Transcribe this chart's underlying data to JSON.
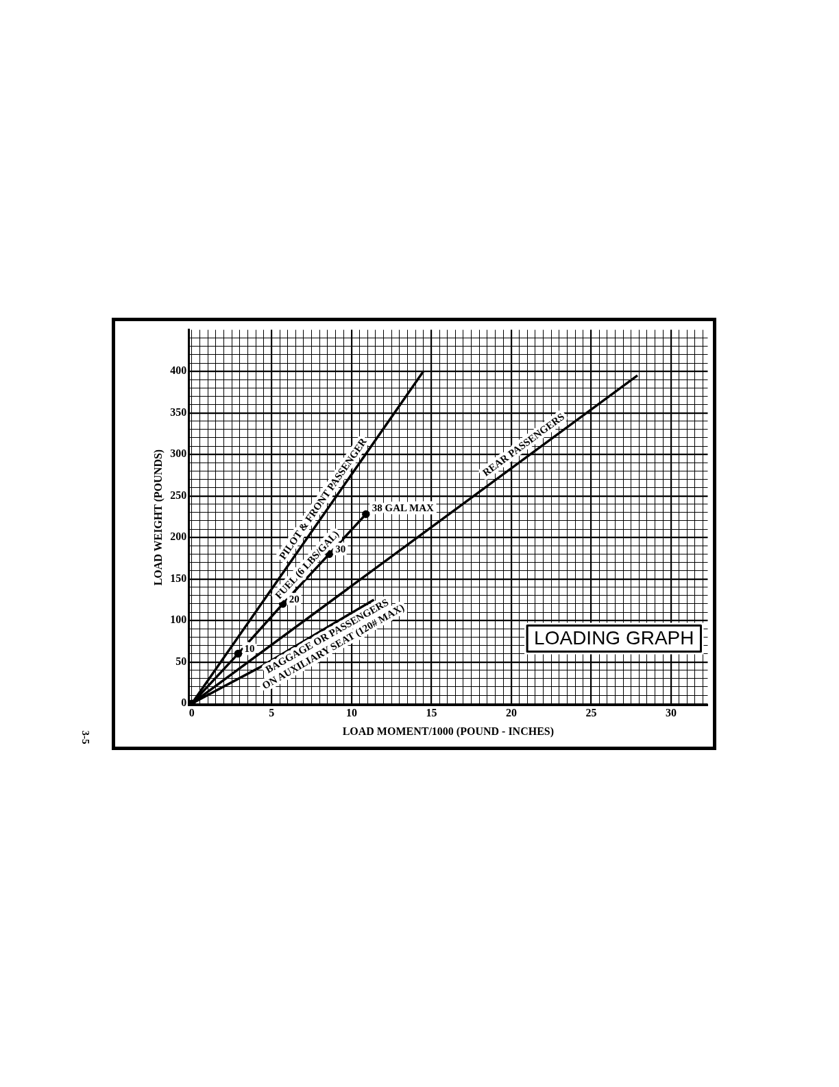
{
  "chart_data": {
    "type": "line",
    "title": "LOADING GRAPH",
    "xlabel": "LOAD MOMENT/1000 (POUND - INCHES)",
    "ylabel": "LOAD WEIGHT (POUNDS)",
    "xlim": [
      -0.2,
      32.3
    ],
    "ylim": [
      -2,
      450
    ],
    "xticks": [
      0,
      {
        "value": 0.5,
        "label": null
      },
      {
        "value": 1,
        "label": null
      },
      {
        "value": 1.5,
        "label": null
      },
      {
        "value": 2,
        "label": null
      },
      {
        "value": 2.5,
        "label": null
      },
      {
        "value": 3,
        "label": null
      },
      {
        "value": 3.5,
        "label": null
      },
      {
        "value": 4,
        "label": null
      },
      {
        "value": 4.5,
        "label": null
      },
      5,
      {
        "value": 5.5,
        "label": null
      },
      {
        "value": 6,
        "label": null
      },
      {
        "value": 6.5,
        "label": null
      },
      {
        "value": 7,
        "label": null
      },
      {
        "value": 7.5,
        "label": null
      },
      {
        "value": 8,
        "label": null
      },
      {
        "value": 8.5,
        "label": null
      },
      {
        "value": 9,
        "label": null
      },
      {
        "value": 9.5,
        "label": null
      },
      10,
      {
        "value": 10.5,
        "label": null
      },
      {
        "value": 11,
        "label": null
      },
      {
        "value": 11.5,
        "label": null
      },
      {
        "value": 12,
        "label": null
      },
      {
        "value": 12.5,
        "label": null
      },
      {
        "value": 13,
        "label": null
      },
      {
        "value": 13.5,
        "label": null
      },
      {
        "value": 14,
        "label": null
      },
      {
        "value": 14.5,
        "label": null
      },
      15,
      {
        "value": 15.5,
        "label": null
      },
      {
        "value": 16,
        "label": null
      },
      {
        "value": 16.5,
        "label": null
      },
      {
        "value": 17,
        "label": null
      },
      {
        "value": 17.5,
        "label": null
      },
      {
        "value": 18,
        "label": null
      },
      {
        "value": 18.5,
        "label": null
      },
      {
        "value": 19,
        "label": null
      },
      {
        "value": 19.5,
        "label": null
      },
      20,
      {
        "value": 20.5,
        "label": null
      },
      {
        "value": 21,
        "label": null
      },
      {
        "value": 21.5,
        "label": null
      },
      {
        "value": 22,
        "label": null
      },
      {
        "value": 22.5,
        "label": null
      },
      {
        "value": 23,
        "label": null
      },
      {
        "value": 23.5,
        "label": null
      },
      {
        "value": 24,
        "label": null
      },
      {
        "value": 24.5,
        "label": null
      },
      25,
      {
        "value": 25.5,
        "label": null
      },
      {
        "value": 26,
        "label": null
      },
      {
        "value": 26.5,
        "label": null
      },
      {
        "value": 27,
        "label": null
      },
      {
        "value": 27.5,
        "label": null
      },
      {
        "value": 28,
        "label": null
      },
      {
        "value": 28.5,
        "label": null
      },
      {
        "value": 29,
        "label": null
      },
      {
        "value": 29.5,
        "label": null
      },
      30,
      {
        "value": 30.5,
        "label": null
      },
      {
        "value": 31,
        "label": null
      },
      {
        "value": 31.5,
        "label": null
      },
      {
        "value": 32,
        "label": null
      }
    ],
    "yticks": [
      0,
      {
        "value": 10,
        "label": null
      },
      {
        "value": 20,
        "label": null
      },
      {
        "value": 30,
        "label": null
      },
      {
        "value": 40,
        "label": null
      },
      50,
      {
        "value": 60,
        "label": null
      },
      {
        "value": 70,
        "label": null
      },
      {
        "value": 80,
        "label": null
      },
      {
        "value": 90,
        "label": null
      },
      100,
      {
        "value": 110,
        "label": null
      },
      {
        "value": 120,
        "label": null
      },
      {
        "value": 130,
        "label": null
      },
      {
        "value": 140,
        "label": null
      },
      150,
      {
        "value": 160,
        "label": null
      },
      {
        "value": 170,
        "label": null
      },
      {
        "value": 180,
        "label": null
      },
      {
        "value": 190,
        "label": null
      },
      200,
      {
        "value": 210,
        "label": null
      },
      {
        "value": 220,
        "label": null
      },
      {
        "value": 230,
        "label": null
      },
      {
        "value": 240,
        "label": null
      },
      250,
      {
        "value": 260,
        "label": null
      },
      {
        "value": 270,
        "label": null
      },
      {
        "value": 280,
        "label": null
      },
      {
        "value": 290,
        "label": null
      },
      300,
      {
        "value": 310,
        "label": null
      },
      {
        "value": 320,
        "label": null
      },
      {
        "value": 330,
        "label": null
      },
      {
        "value": 340,
        "label": null
      },
      350,
      {
        "value": 360,
        "label": null
      },
      {
        "value": 370,
        "label": null
      },
      {
        "value": 380,
        "label": null
      },
      {
        "value": 390,
        "label": null
      },
      400,
      {
        "value": 410,
        "label": null
      },
      {
        "value": 420,
        "label": null
      },
      {
        "value": 430,
        "label": null
      },
      {
        "value": 440,
        "label": null
      }
    ],
    "grid": true,
    "legend": false,
    "series": [
      {
        "name": "PILOT & FRONT PASSENGER",
        "color": "#000000",
        "x": [
          0,
          14.5
        ],
        "values": [
          0,
          400
        ]
      },
      {
        "name": "FUEL (6 LBS/GAL)",
        "color": "#000000",
        "x": [
          0,
          2.9,
          5.7,
          8.6,
          10.9
        ],
        "values": [
          0,
          60,
          120,
          180,
          228
        ],
        "marker": "circle"
      },
      {
        "name": "REAR PASSENGERS",
        "color": "#000000",
        "x": [
          0,
          27.9
        ],
        "values": [
          0,
          395
        ]
      },
      {
        "name": "BAGGAGE OR PASSENGERS ON AUXILIARY SEAT (120# MAX)",
        "color": "#000000",
        "x": [
          0,
          4.2,
          11.4
        ],
        "values": [
          0,
          43,
          125
        ]
      }
    ],
    "annotations": [
      {
        "text": "10",
        "x": 2.9,
        "y": 60
      },
      {
        "text": "20",
        "x": 5.7,
        "y": 120
      },
      {
        "text": "30",
        "x": 8.6,
        "y": 180
      },
      {
        "text": "38 GAL MAX",
        "x": 10.9,
        "y": 228
      },
      "3-5"
    ]
  }
}
